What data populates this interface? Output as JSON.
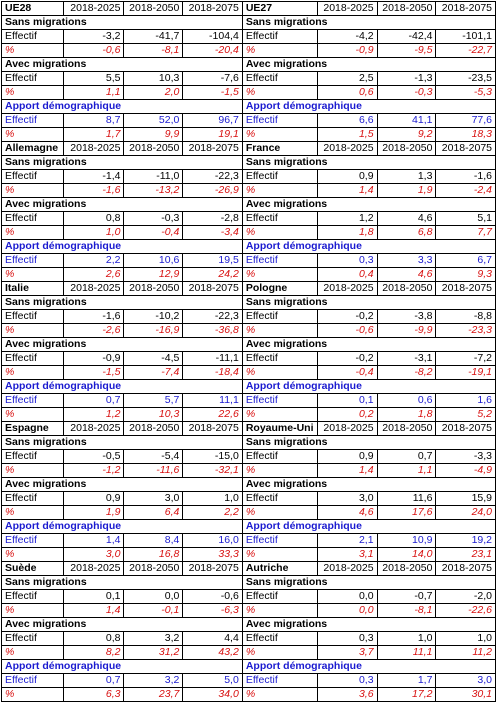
{
  "labels": {
    "sans": "Sans migrations",
    "avec": "Avec migrations",
    "apport": "Apport démographique",
    "effectif": "Effectif",
    "pct": "%"
  },
  "years": [
    "2018-2025",
    "2018-2050",
    "2018-2075"
  ],
  "blocks": [
    {
      "left": {
        "name": "UE28",
        "sans_eff": [
          "-3,2",
          "-41,7",
          "-104,4"
        ],
        "sans_pct": [
          "-0,6",
          "-8,1",
          "-20,4"
        ],
        "avec_eff": [
          "5,5",
          "10,3",
          "-7,6"
        ],
        "avec_pct": [
          "1,1",
          "2,0",
          "-1,5"
        ],
        "app_eff": [
          "8,7",
          "52,0",
          "96,7"
        ],
        "app_pct": [
          "1,7",
          "9,9",
          "19,1"
        ]
      },
      "right": {
        "name": "UE27",
        "sans_eff": [
          "-4,2",
          "-42,4",
          "-101,1"
        ],
        "sans_pct": [
          "-0,9",
          "-9,5",
          "-22,7"
        ],
        "avec_eff": [
          "2,5",
          "-1,3",
          "-23,5"
        ],
        "avec_pct": [
          "0,6",
          "-0,3",
          "-5,3"
        ],
        "app_eff": [
          "6,6",
          "41,1",
          "77,6"
        ],
        "app_pct": [
          "1,5",
          "9,2",
          "18,3"
        ]
      }
    },
    {
      "left": {
        "name": "Allemagne",
        "sans_eff": [
          "-1,4",
          "-11,0",
          "-22,3"
        ],
        "sans_pct": [
          "-1,6",
          "-13,2",
          "-26,9"
        ],
        "avec_eff": [
          "0,8",
          "-0,3",
          "-2,8"
        ],
        "avec_pct": [
          "1,0",
          "-0,4",
          "-3,4"
        ],
        "app_eff": [
          "2,2",
          "10,6",
          "19,5"
        ],
        "app_pct": [
          "2,6",
          "12,9",
          "24,2"
        ]
      },
      "right": {
        "name": "France",
        "sans_eff": [
          "0,9",
          "1,3",
          "-1,6"
        ],
        "sans_pct": [
          "1,4",
          "1,9",
          "-2,4"
        ],
        "avec_eff": [
          "1,2",
          "4,6",
          "5,1"
        ],
        "avec_pct": [
          "1,8",
          "6,8",
          "7,7"
        ],
        "app_eff": [
          "0,3",
          "3,3",
          "6,7"
        ],
        "app_pct": [
          "0,4",
          "4,6",
          "9,3"
        ]
      }
    },
    {
      "left": {
        "name": "Italie",
        "sans_eff": [
          "-1,6",
          "-10,2",
          "-22,3"
        ],
        "sans_pct": [
          "-2,6",
          "-16,9",
          "-36,8"
        ],
        "avec_eff": [
          "-0,9",
          "-4,5",
          "-11,1"
        ],
        "avec_pct": [
          "-1,5",
          "-7,4",
          "-18,4"
        ],
        "app_eff": [
          "0,7",
          "5,7",
          "11,1"
        ],
        "app_pct": [
          "1,2",
          "10,3",
          "22,6"
        ]
      },
      "right": {
        "name": "Pologne",
        "sans_eff": [
          "-0,2",
          "-3,8",
          "-8,8"
        ],
        "sans_pct": [
          "-0,6",
          "-9,9",
          "-23,3"
        ],
        "avec_eff": [
          "-0,2",
          "-3,1",
          "-7,2"
        ],
        "avec_pct": [
          "-0,4",
          "-8,2",
          "-19,1"
        ],
        "app_eff": [
          "0,1",
          "0,6",
          "1,6"
        ],
        "app_pct": [
          "0,2",
          "1,8",
          "5,2"
        ]
      }
    },
    {
      "left": {
        "name": "Espagne",
        "sans_eff": [
          "-0,5",
          "-5,4",
          "-15,0"
        ],
        "sans_pct": [
          "-1,2",
          "-11,6",
          "-32,1"
        ],
        "avec_eff": [
          "0,9",
          "3,0",
          "1,0"
        ],
        "avec_pct": [
          "1,9",
          "6,4",
          "2,2"
        ],
        "app_eff": [
          "1,4",
          "8,4",
          "16,0"
        ],
        "app_pct": [
          "3,0",
          "16,8",
          "33,3"
        ]
      },
      "right": {
        "name": "Royaume-Uni",
        "sans_eff": [
          "0,9",
          "0,7",
          "-3,3"
        ],
        "sans_pct": [
          "1,4",
          "1,1",
          "-4,9"
        ],
        "avec_eff": [
          "3,0",
          "11,6",
          "15,9"
        ],
        "avec_pct": [
          "4,6",
          "17,6",
          "24,0"
        ],
        "app_eff": [
          "2,1",
          "10,9",
          "19,2"
        ],
        "app_pct": [
          "3,1",
          "14,0",
          "23,1"
        ]
      }
    },
    {
      "left": {
        "name": "Suède",
        "sans_eff": [
          "0,1",
          "0,0",
          "-0,6"
        ],
        "sans_pct": [
          "1,4",
          "-0,1",
          "-6,3"
        ],
        "avec_eff": [
          "0,8",
          "3,2",
          "4,4"
        ],
        "avec_pct": [
          "8,2",
          "31,2",
          "43,2"
        ],
        "app_eff": [
          "0,7",
          "3,2",
          "5,0"
        ],
        "app_pct": [
          "6,3",
          "23,7",
          "34,0"
        ]
      },
      "right": {
        "name": "Autriche",
        "sans_eff": [
          "0,0",
          "-0,7",
          "-2,0"
        ],
        "sans_pct": [
          "0,0",
          "-8,1",
          "-22,6"
        ],
        "avec_eff": [
          "0,3",
          "1,0",
          "1,0"
        ],
        "avec_pct": [
          "3,7",
          "11,1",
          "11,2"
        ],
        "app_eff": [
          "0,3",
          "1,7",
          "3,0"
        ],
        "app_pct": [
          "3,6",
          "17,2",
          "30,1"
        ]
      }
    }
  ]
}
